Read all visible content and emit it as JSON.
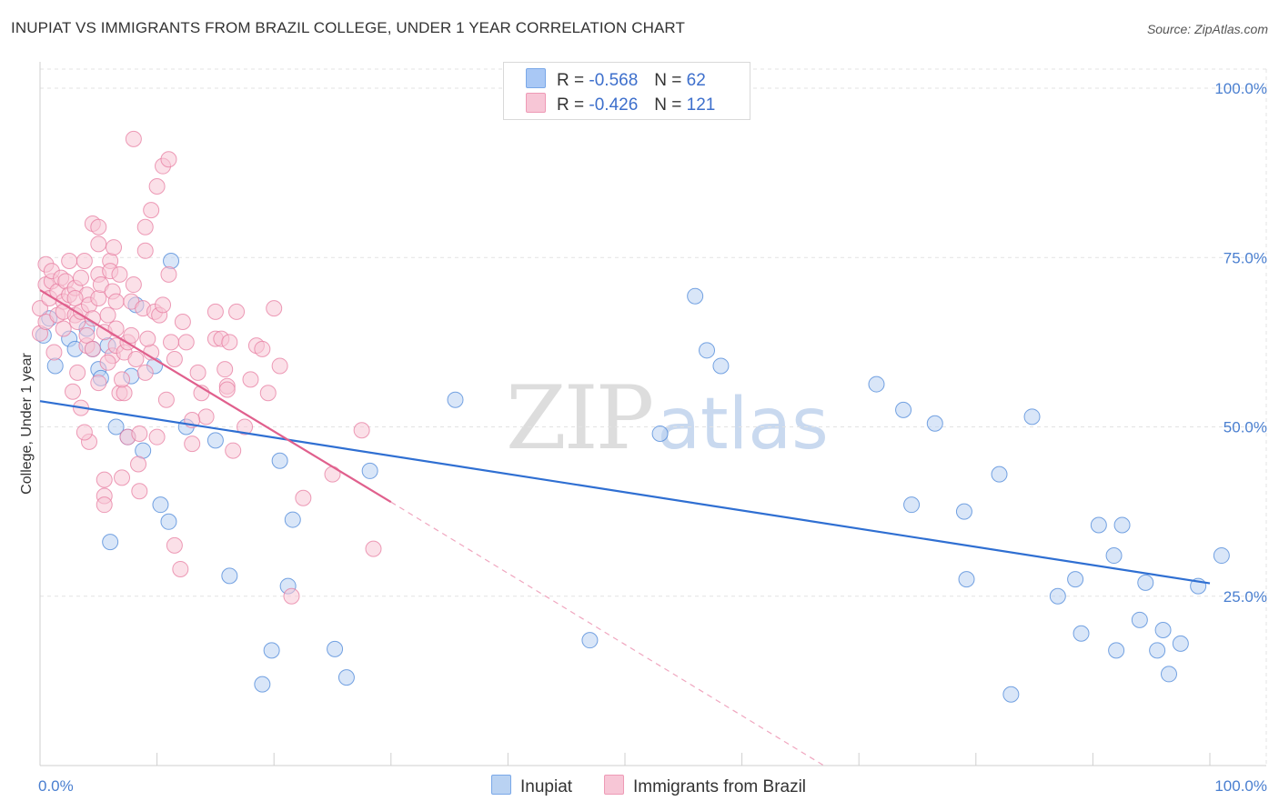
{
  "title": "INUPIAT VS IMMIGRANTS FROM BRAZIL COLLEGE, UNDER 1 YEAR CORRELATION CHART",
  "source": "Source: ZipAtlas.com",
  "watermark": {
    "part1": "ZIP",
    "part2": "atlas"
  },
  "legend": {
    "rows": [
      {
        "r_label": "R =",
        "r_value": "-0.568",
        "n_label": "N =",
        "n_value": "62",
        "color": "#a9c8f5"
      },
      {
        "r_label": "R =",
        "r_value": "-0.426",
        "n_label": "N =",
        "n_value": "121",
        "color": "#f7b6cb"
      }
    ]
  },
  "bottom_legend": {
    "series1": "Inupiat",
    "series2": "Immigrants from Brazil"
  },
  "chart_data": {
    "type": "scatter",
    "xlabel": "",
    "ylabel": "College, Under 1 year",
    "xlim": [
      0,
      100
    ],
    "ylim": [
      0,
      100
    ],
    "x_tick_labels": [
      "0.0%",
      "100.0%"
    ],
    "y_tick_labels": [
      {
        "value": 100,
        "label": "100.0%"
      },
      {
        "value": 75,
        "label": "75.0%"
      },
      {
        "value": 50,
        "label": "50.0%"
      },
      {
        "value": 25,
        "label": "25.0%"
      }
    ],
    "grid": true,
    "series": [
      {
        "name": "Inupiat",
        "color": "#4a86d8",
        "fill": "#b9d2f2",
        "trend": {
          "x": [
            0,
            100
          ],
          "y": [
            53.8,
            26.9
          ],
          "color": "#2f6fd2"
        },
        "points": [
          [
            0.3,
            63.5
          ],
          [
            0.8,
            66
          ],
          [
            1.3,
            59
          ],
          [
            2.5,
            63
          ],
          [
            3,
            61.5
          ],
          [
            4,
            64.5
          ],
          [
            4.5,
            61.5
          ],
          [
            5,
            58.5
          ],
          [
            5.2,
            57.2
          ],
          [
            5.8,
            62
          ],
          [
            6,
            33
          ],
          [
            6.5,
            50
          ],
          [
            7.5,
            48.5
          ],
          [
            7.8,
            57.5
          ],
          [
            8.2,
            68
          ],
          [
            8.8,
            46.5
          ],
          [
            9.8,
            59
          ],
          [
            10.3,
            38.5
          ],
          [
            11,
            36
          ],
          [
            11.2,
            74.5
          ],
          [
            12.5,
            50
          ],
          [
            15,
            48
          ],
          [
            16.2,
            28
          ],
          [
            19,
            12
          ],
          [
            19.8,
            17
          ],
          [
            20.5,
            45
          ],
          [
            21.2,
            26.5
          ],
          [
            21.6,
            36.3
          ],
          [
            25.2,
            17.2
          ],
          [
            26.2,
            13
          ],
          [
            28.2,
            43.5
          ],
          [
            35.5,
            54
          ],
          [
            47,
            18.5
          ],
          [
            53,
            49
          ],
          [
            56,
            69.3
          ],
          [
            57,
            61.3
          ],
          [
            58.2,
            59
          ],
          [
            71.5,
            56.3
          ],
          [
            73.8,
            52.5
          ],
          [
            74.5,
            38.5
          ],
          [
            76.5,
            50.5
          ],
          [
            79,
            37.5
          ],
          [
            79.2,
            27.5
          ],
          [
            82,
            43
          ],
          [
            83,
            10.5
          ],
          [
            84.8,
            51.5
          ],
          [
            87,
            25
          ],
          [
            88.5,
            27.5
          ],
          [
            89,
            19.5
          ],
          [
            90.5,
            35.5
          ],
          [
            91.8,
            31
          ],
          [
            92,
            17
          ],
          [
            92.5,
            35.5
          ],
          [
            94,
            21.5
          ],
          [
            94.5,
            27
          ],
          [
            95.5,
            17
          ],
          [
            96,
            20
          ],
          [
            96.5,
            13.5
          ],
          [
            97.5,
            18
          ],
          [
            99,
            26.5
          ],
          [
            101,
            31
          ]
        ]
      },
      {
        "name": "Immigrants from Brazil",
        "color": "#e77ca0",
        "fill": "#f7c6d6",
        "trend": {
          "x": [
            0,
            30
          ],
          "y": [
            70.2,
            38.9
          ],
          "color": "#e0608d"
        },
        "trend_dashed": {
          "x": [
            30,
            67
          ],
          "y": [
            38.9,
            0
          ]
        },
        "points": [
          [
            0,
            63.8
          ],
          [
            0,
            67.5
          ],
          [
            0.5,
            71
          ],
          [
            0.5,
            74
          ],
          [
            0.5,
            65.5
          ],
          [
            0.8,
            69
          ],
          [
            1,
            71.5
          ],
          [
            1,
            73
          ],
          [
            1.5,
            70
          ],
          [
            1.5,
            66.5
          ],
          [
            1.8,
            72
          ],
          [
            2,
            68.5
          ],
          [
            2,
            67
          ],
          [
            2.2,
            71.5
          ],
          [
            2.5,
            74.5
          ],
          [
            2.5,
            69.5
          ],
          [
            3,
            66.5
          ],
          [
            3,
            70.5
          ],
          [
            3.2,
            65.5
          ],
          [
            3.5,
            67
          ],
          [
            3.5,
            72
          ],
          [
            3.8,
            74.5
          ],
          [
            3.5,
            52.8
          ],
          [
            4,
            62
          ],
          [
            4,
            63.5
          ],
          [
            4,
            69.5
          ],
          [
            4.2,
            68
          ],
          [
            4.5,
            80
          ],
          [
            4.5,
            66
          ],
          [
            4.5,
            61.5
          ],
          [
            5,
            79.5
          ],
          [
            5,
            56.5
          ],
          [
            5,
            77
          ],
          [
            5,
            72.5
          ],
          [
            5,
            69
          ],
          [
            5.2,
            71
          ],
          [
            5.5,
            64
          ],
          [
            5.5,
            42.2
          ],
          [
            5.5,
            39.8
          ],
          [
            5.5,
            38.5
          ],
          [
            5.8,
            66.5
          ],
          [
            6,
            74.5
          ],
          [
            6,
            73
          ],
          [
            6.2,
            60.5
          ],
          [
            6.2,
            70
          ],
          [
            6.5,
            62
          ],
          [
            6.5,
            64.5
          ],
          [
            6.5,
            68.5
          ],
          [
            6.8,
            55
          ],
          [
            7,
            42.5
          ],
          [
            7.2,
            61
          ],
          [
            7.5,
            62.5
          ],
          [
            7.5,
            48.5
          ],
          [
            7.8,
            63.5
          ],
          [
            7.8,
            68.5
          ],
          [
            8,
            92.5
          ],
          [
            8,
            71
          ],
          [
            8.2,
            60
          ],
          [
            8.5,
            49
          ],
          [
            8.5,
            40.5
          ],
          [
            8.8,
            67.5
          ],
          [
            9,
            79.5
          ],
          [
            9,
            76
          ],
          [
            9,
            58
          ],
          [
            9.5,
            82
          ],
          [
            9.5,
            61
          ],
          [
            9.8,
            67
          ],
          [
            10,
            85.5
          ],
          [
            10.2,
            66.5
          ],
          [
            10.5,
            88.5
          ],
          [
            10.5,
            68
          ],
          [
            10.8,
            54
          ],
          [
            11,
            89.5
          ],
          [
            11,
            72.5
          ],
          [
            11.2,
            62.5
          ],
          [
            11.5,
            32.5
          ],
          [
            12,
            29
          ],
          [
            12.5,
            62.5
          ],
          [
            13,
            47.5
          ],
          [
            13.5,
            58
          ],
          [
            13.8,
            55
          ],
          [
            14.2,
            51.5
          ],
          [
            15,
            67
          ],
          [
            15,
            63
          ],
          [
            15.5,
            63
          ],
          [
            16,
            56
          ],
          [
            16,
            55.5
          ],
          [
            16.2,
            62.5
          ],
          [
            16.5,
            46.5
          ],
          [
            16.8,
            67
          ],
          [
            17.5,
            50
          ],
          [
            18,
            57
          ],
          [
            18.5,
            62
          ],
          [
            19,
            61.5
          ],
          [
            19.5,
            55
          ],
          [
            20,
            67.5
          ],
          [
            20.5,
            59
          ],
          [
            21.5,
            25
          ],
          [
            22.5,
            39.5
          ],
          [
            25,
            43
          ],
          [
            27.5,
            49.5
          ],
          [
            28.5,
            32
          ],
          [
            4.2,
            47.8
          ],
          [
            3.8,
            49.2
          ],
          [
            2.8,
            55.2
          ],
          [
            6.8,
            72.5
          ],
          [
            2,
            64.5
          ],
          [
            1.2,
            61
          ],
          [
            10,
            48.5
          ],
          [
            13,
            51
          ],
          [
            7.2,
            55
          ],
          [
            3.2,
            58
          ],
          [
            9.2,
            63
          ],
          [
            12.2,
            65.5
          ],
          [
            15.8,
            58.5
          ],
          [
            5.8,
            59.5
          ],
          [
            8.4,
            44.5
          ],
          [
            3,
            69
          ],
          [
            6.3,
            76.5
          ],
          [
            7,
            57
          ],
          [
            11.5,
            60
          ]
        ]
      }
    ]
  }
}
